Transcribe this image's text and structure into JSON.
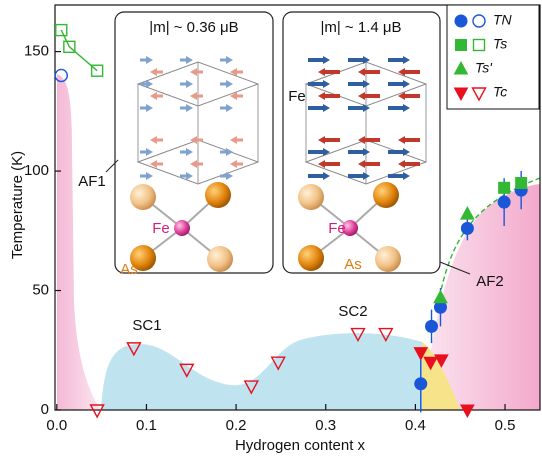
{
  "chart_data": {
    "type": "scatter",
    "xlabel": "Hydrogen content x",
    "ylabel": "Temperature (K)",
    "xlim": [
      -0.002,
      0.539
    ],
    "ylim": [
      0,
      169.5
    ],
    "xticks": [
      {
        "value": 0,
        "label": "0.0"
      },
      {
        "value": 0.1,
        "label": "0.1"
      },
      {
        "value": 0.2,
        "label": "0.2"
      },
      {
        "value": 0.3,
        "label": "0.3"
      },
      {
        "value": 0.4,
        "label": "0.4"
      },
      {
        "value": 0.5,
        "label": "0.5"
      }
    ],
    "yticks": [
      0,
      50,
      100,
      150
    ],
    "legend": "upper right",
    "series": [
      {
        "name": "TN",
        "color": "#1a56d8",
        "marker": "circle",
        "x": [
          0.005,
          0.406,
          0.418,
          0.428,
          0.458,
          0.499,
          0.518
        ],
        "values": [
          140,
          11,
          35,
          43,
          76,
          87,
          92
        ],
        "errors": [
          null,
          12,
          7,
          8,
          5,
          10,
          8
        ],
        "open": [
          true,
          false,
          false,
          false,
          false,
          false,
          false
        ]
      },
      {
        "name": "Ts",
        "color": "#33b833",
        "marker": "square",
        "x": [
          0.005,
          0.014,
          0.045,
          0.499,
          0.518
        ],
        "values": [
          159,
          152,
          142,
          93,
          95
        ],
        "open": [
          true,
          true,
          true,
          false,
          false
        ],
        "connect_open": true
      },
      {
        "name": "Ts'",
        "color": "#33b833",
        "marker": "triangle-up",
        "x": [
          0.428,
          0.458
        ],
        "values": [
          47,
          82
        ],
        "open": [
          false,
          false
        ]
      },
      {
        "name": "Tc",
        "color": "#e8101e",
        "marker": "triangle-down",
        "x": [
          0.045,
          0.086,
          0.145,
          0.217,
          0.247,
          0.336,
          0.367,
          0.406,
          0.417,
          0.429,
          0.458
        ],
        "values": [
          0,
          26,
          17,
          10,
          20,
          32,
          32,
          24,
          20,
          21,
          0
        ],
        "open": [
          true,
          true,
          true,
          true,
          true,
          true,
          true,
          false,
          false,
          false,
          false
        ]
      }
    ],
    "annotations": [
      "AF1",
      "SC1",
      "SC2",
      "AF2"
    ],
    "insets": [
      {
        "title": "|m| ~ 0.36 μB",
        "labels": [
          "Fe",
          "As"
        ]
      },
      {
        "title": "|m| ~ 1.4 μB",
        "labels": [
          "Fe",
          "Fe",
          "As"
        ]
      }
    ]
  }
}
